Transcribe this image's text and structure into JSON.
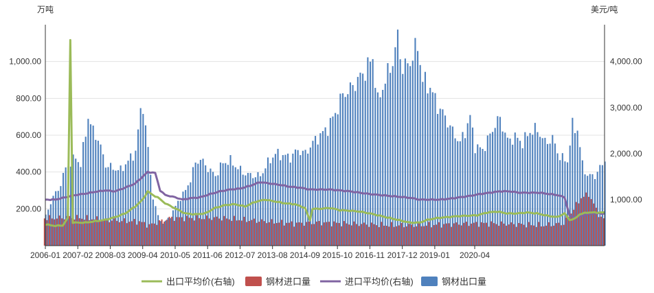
{
  "chart_data": {
    "type": "bar",
    "title": "",
    "left_unit": "万吨",
    "right_unit": "美元/吨",
    "grid": true,
    "legend_position": "bottom",
    "x_ticks": [
      "2006-01",
      "2007-02",
      "2008-03",
      "2009-04",
      "2010-05",
      "2011-06",
      "2012-07",
      "2013-08",
      "2014-09",
      "2015-10",
      "2016-11",
      "2017-12",
      "2019-01",
      "2020-04"
    ],
    "y_left": {
      "min": 0,
      "max": 1200,
      "ticks": [
        "200.00",
        "400.00",
        "600.00",
        "800.00",
        "1,000.00"
      ]
    },
    "y_right": {
      "min": 0,
      "max": 4800,
      "ticks": [
        "1,000.00",
        "2,000.00",
        "3,000.00",
        "4,000.00"
      ]
    },
    "colors": {
      "export_price": "#9bbb59",
      "import_volume": "#c0504d",
      "import_price": "#8064a2",
      "export_volume": "#4f81bd"
    },
    "series": [
      {
        "name": "钢材出口量",
        "key": "export_volume",
        "axis": "left",
        "control_points": [
          [
            0,
            160
          ],
          [
            3,
            270
          ],
          [
            5,
            300
          ],
          [
            8,
            420
          ],
          [
            12,
            480
          ],
          [
            14,
            440
          ],
          [
            17,
            700
          ],
          [
            19,
            620
          ],
          [
            21,
            580
          ],
          [
            24,
            440
          ],
          [
            27,
            420
          ],
          [
            30,
            410
          ],
          [
            33,
            460
          ],
          [
            36,
            510
          ],
          [
            38,
            730
          ],
          [
            39,
            760
          ],
          [
            41,
            520
          ],
          [
            43,
            260
          ],
          [
            45,
            160
          ],
          [
            47,
            120
          ],
          [
            50,
            160
          ],
          [
            53,
            240
          ],
          [
            56,
            300
          ],
          [
            58,
            360
          ],
          [
            60,
            450
          ],
          [
            62,
            470
          ],
          [
            65,
            420
          ],
          [
            68,
            380
          ],
          [
            71,
            450
          ],
          [
            74,
            460
          ],
          [
            77,
            420
          ],
          [
            80,
            390
          ],
          [
            83,
            380
          ],
          [
            86,
            380
          ],
          [
            89,
            450
          ],
          [
            92,
            500
          ],
          [
            95,
            490
          ],
          [
            98,
            480
          ],
          [
            101,
            520
          ],
          [
            104,
            500
          ],
          [
            107,
            560
          ],
          [
            110,
            600
          ],
          [
            113,
            640
          ],
          [
            116,
            720
          ],
          [
            119,
            820
          ],
          [
            122,
            850
          ],
          [
            125,
            900
          ],
          [
            128,
            950
          ],
          [
            131,
            1020
          ],
          [
            133,
            780
          ],
          [
            136,
            900
          ],
          [
            139,
            1000
          ],
          [
            141,
            1130
          ],
          [
            143,
            960
          ],
          [
            146,
            1000
          ],
          [
            149,
            1090
          ],
          [
            151,
            900
          ],
          [
            154,
            860
          ],
          [
            157,
            760
          ],
          [
            160,
            700
          ],
          [
            163,
            620
          ],
          [
            166,
            560
          ],
          [
            168,
            620
          ],
          [
            170,
            700
          ],
          [
            172,
            540
          ],
          [
            175,
            520
          ],
          [
            178,
            600
          ],
          [
            180,
            660
          ],
          [
            182,
            690
          ],
          [
            185,
            570
          ],
          [
            188,
            590
          ],
          [
            191,
            560
          ],
          [
            194,
            620
          ],
          [
            197,
            630
          ],
          [
            200,
            560
          ],
          [
            203,
            580
          ],
          [
            206,
            480
          ],
          [
            209,
            460
          ],
          [
            211,
            650
          ],
          [
            213,
            630
          ],
          [
            215,
            440
          ],
          [
            217,
            380
          ],
          [
            220,
            380
          ],
          [
            222,
            420
          ],
          [
            224,
            470
          ]
        ]
      },
      {
        "name": "钢材进口量",
        "key": "import_volume",
        "axis": "left",
        "control_points": [
          [
            0,
            150
          ],
          [
            5,
            150
          ],
          [
            10,
            155
          ],
          [
            20,
            145
          ],
          [
            30,
            135
          ],
          [
            38,
            130
          ],
          [
            42,
            110
          ],
          [
            46,
            130
          ],
          [
            50,
            150
          ],
          [
            60,
            150
          ],
          [
            70,
            150
          ],
          [
            80,
            140
          ],
          [
            90,
            130
          ],
          [
            100,
            120
          ],
          [
            110,
            125
          ],
          [
            120,
            120
          ],
          [
            130,
            115
          ],
          [
            140,
            110
          ],
          [
            150,
            110
          ],
          [
            160,
            115
          ],
          [
            170,
            120
          ],
          [
            180,
            120
          ],
          [
            190,
            115
          ],
          [
            200,
            110
          ],
          [
            208,
            120
          ],
          [
            212,
            200
          ],
          [
            215,
            260
          ],
          [
            218,
            280
          ],
          [
            222,
            170
          ],
          [
            224,
            140
          ]
        ]
      },
      {
        "name": "出口平均价(右轴)",
        "key": "export_price",
        "axis": "right",
        "control_points": [
          [
            0,
            460
          ],
          [
            4,
            430
          ],
          [
            7,
            440
          ],
          [
            9,
            600
          ],
          [
            10,
            4470
          ],
          [
            11,
            500
          ],
          [
            13,
            500
          ],
          [
            16,
            500
          ],
          [
            20,
            530
          ],
          [
            24,
            560
          ],
          [
            28,
            620
          ],
          [
            32,
            700
          ],
          [
            36,
            850
          ],
          [
            39,
            1000
          ],
          [
            41,
            1180
          ],
          [
            43,
            1100
          ],
          [
            45,
            1050
          ],
          [
            48,
            920
          ],
          [
            52,
            810
          ],
          [
            56,
            700
          ],
          [
            60,
            680
          ],
          [
            64,
            700
          ],
          [
            68,
            820
          ],
          [
            72,
            880
          ],
          [
            76,
            900
          ],
          [
            80,
            850
          ],
          [
            84,
            950
          ],
          [
            88,
            1000
          ],
          [
            92,
            960
          ],
          [
            96,
            920
          ],
          [
            100,
            900
          ],
          [
            104,
            820
          ],
          [
            106,
            550
          ],
          [
            107,
            800
          ],
          [
            110,
            800
          ],
          [
            114,
            820
          ],
          [
            118,
            770
          ],
          [
            122,
            760
          ],
          [
            126,
            740
          ],
          [
            130,
            700
          ],
          [
            134,
            650
          ],
          [
            138,
            600
          ],
          [
            142,
            550
          ],
          [
            146,
            500
          ],
          [
            150,
            500
          ],
          [
            153,
            560
          ],
          [
            157,
            600
          ],
          [
            161,
            620
          ],
          [
            165,
            640
          ],
          [
            169,
            650
          ],
          [
            173,
            660
          ],
          [
            177,
            720
          ],
          [
            181,
            740
          ],
          [
            185,
            700
          ],
          [
            189,
            700
          ],
          [
            193,
            720
          ],
          [
            197,
            700
          ],
          [
            201,
            650
          ],
          [
            205,
            620
          ],
          [
            208,
            700
          ],
          [
            210,
            560
          ],
          [
            212,
            580
          ],
          [
            214,
            680
          ],
          [
            217,
            720
          ],
          [
            220,
            720
          ],
          [
            224,
            720
          ]
        ]
      },
      {
        "name": "进口平均价(右轴)",
        "key": "import_price",
        "axis": "right",
        "control_points": [
          [
            0,
            1000
          ],
          [
            4,
            1000
          ],
          [
            8,
            1050
          ],
          [
            12,
            1100
          ],
          [
            16,
            1130
          ],
          [
            20,
            1170
          ],
          [
            24,
            1200
          ],
          [
            28,
            1180
          ],
          [
            32,
            1260
          ],
          [
            36,
            1350
          ],
          [
            39,
            1500
          ],
          [
            41,
            1600
          ],
          [
            44,
            1580
          ],
          [
            46,
            1200
          ],
          [
            48,
            1100
          ],
          [
            52,
            1050
          ],
          [
            55,
            1000
          ],
          [
            58,
            1030
          ],
          [
            62,
            1050
          ],
          [
            66,
            1120
          ],
          [
            70,
            1180
          ],
          [
            74,
            1220
          ],
          [
            78,
            1240
          ],
          [
            82,
            1300
          ],
          [
            86,
            1380
          ],
          [
            90,
            1350
          ],
          [
            94,
            1320
          ],
          [
            98,
            1280
          ],
          [
            102,
            1260
          ],
          [
            106,
            1220
          ],
          [
            110,
            1220
          ],
          [
            114,
            1220
          ],
          [
            118,
            1200
          ],
          [
            122,
            1180
          ],
          [
            126,
            1150
          ],
          [
            130,
            1120
          ],
          [
            134,
            1100
          ],
          [
            138,
            1080
          ],
          [
            142,
            1060
          ],
          [
            146,
            1040
          ],
          [
            150,
            1000
          ],
          [
            154,
            1000
          ],
          [
            158,
            1000
          ],
          [
            162,
            1020
          ],
          [
            166,
            1050
          ],
          [
            170,
            1080
          ],
          [
            174,
            1120
          ],
          [
            178,
            1150
          ],
          [
            182,
            1180
          ],
          [
            186,
            1180
          ],
          [
            190,
            1150
          ],
          [
            194,
            1150
          ],
          [
            198,
            1150
          ],
          [
            202,
            1120
          ],
          [
            205,
            1100
          ],
          [
            208,
            1050
          ],
          [
            210,
            650
          ],
          [
            212,
            620
          ],
          [
            214,
            640
          ],
          [
            217,
            680
          ],
          [
            220,
            700
          ],
          [
            224,
            700
          ]
        ]
      }
    ],
    "legend": [
      {
        "label": "出口平均价(右轴)",
        "key": "export_price",
        "shape": "line"
      },
      {
        "label": "钢材进口量",
        "key": "import_volume",
        "shape": "box"
      },
      {
        "label": "进口平均价(右轴)",
        "key": "import_price",
        "shape": "line"
      },
      {
        "label": "钢材出口量",
        "key": "export_volume",
        "shape": "box"
      }
    ]
  }
}
